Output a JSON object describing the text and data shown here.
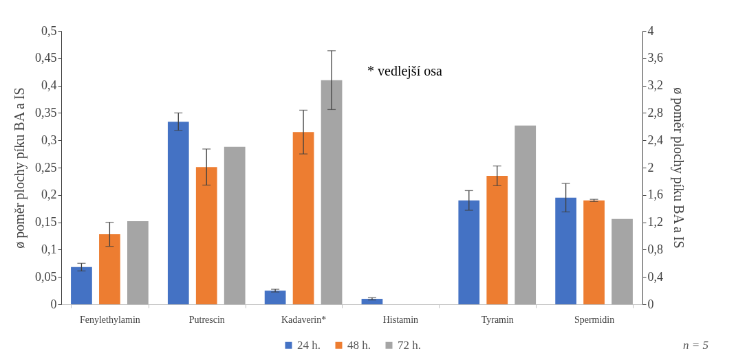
{
  "chart_data": {
    "type": "bar",
    "categories": [
      "Fenylethylamin",
      "Putrescin",
      "Kadaverin*",
      "Histamin",
      "Tyramin",
      "Spermidin"
    ],
    "series": [
      {
        "name": "24 h.",
        "color": "#4472c4",
        "values": [
          0.068,
          0.334,
          null,
          0.01,
          0.19,
          0.195
        ],
        "errors": [
          0.007,
          0.016,
          null,
          0.002,
          0.018,
          0.026
        ]
      },
      {
        "name": "48 h.",
        "color": "#ed7d31",
        "values": [
          0.128,
          0.251,
          null,
          null,
          0.235,
          0.19
        ],
        "errors": [
          0.022,
          0.033,
          null,
          null,
          0.018,
          0.002
        ]
      },
      {
        "name": "72 h.",
        "color": "#a5a5a5",
        "values": [
          0.152,
          0.288,
          null,
          null,
          0.327,
          0.156
        ]
      },
      {
        "color": "#4472c4",
        "axis": "y2",
        "values": [
          null,
          null,
          0.2,
          null,
          null,
          null
        ],
        "errors": [
          null,
          null,
          0.02,
          null,
          null,
          null
        ]
      },
      {
        "color": "#ed7d31",
        "axis": "y2",
        "values": [
          null,
          null,
          2.52,
          null,
          null,
          null
        ],
        "errors": [
          null,
          null,
          0.32,
          null,
          null,
          null
        ]
      },
      {
        "color": "#a5a5a5",
        "axis": "y2",
        "values": [
          null,
          null,
          3.28,
          null,
          null,
          null
        ],
        "errors": [
          null,
          null,
          0.43,
          null,
          null,
          null
        ]
      }
    ],
    "ylabel": "ø poměr plochy píku BA a IS",
    "y2label": "ø poměr plochy píku BA a IS",
    "ylim": [
      0,
      0.5
    ],
    "yticks": [
      0,
      {
        "value": 0.05,
        "label": "0,05"
      },
      {
        "value": 0.1,
        "label": "0,1"
      },
      {
        "value": 0.15,
        "label": "0,15"
      },
      {
        "value": 0.2,
        "label": "0,2"
      },
      {
        "value": 0.25,
        "label": "0,25"
      },
      {
        "value": 0.3,
        "label": "0,3"
      },
      {
        "value": 0.35,
        "label": "0,35"
      },
      {
        "value": 0.4,
        "label": "0,4"
      },
      {
        "value": 0.45,
        "label": "0,45"
      },
      {
        "value": 0.5,
        "label": "0,5"
      }
    ],
    "y2lim": [
      0,
      4
    ],
    "y2ticks": [
      0,
      {
        "value": 0.4,
        "label": "0,4"
      },
      {
        "value": 0.8,
        "label": "0,8"
      },
      {
        "value": 1.2,
        "label": "1,2"
      },
      {
        "value": 1.6,
        "label": "1,6"
      },
      2,
      {
        "value": 2.4,
        "label": "2,4"
      },
      {
        "value": 2.8,
        "label": "2,8"
      },
      {
        "value": 3.2,
        "label": "3,2"
      },
      {
        "value": 3.6,
        "label": "3,6"
      },
      4
    ],
    "annotations": [
      "* vedlejší osa",
      "n = 5"
    ],
    "legend": "bottom",
    "grid": false
  }
}
